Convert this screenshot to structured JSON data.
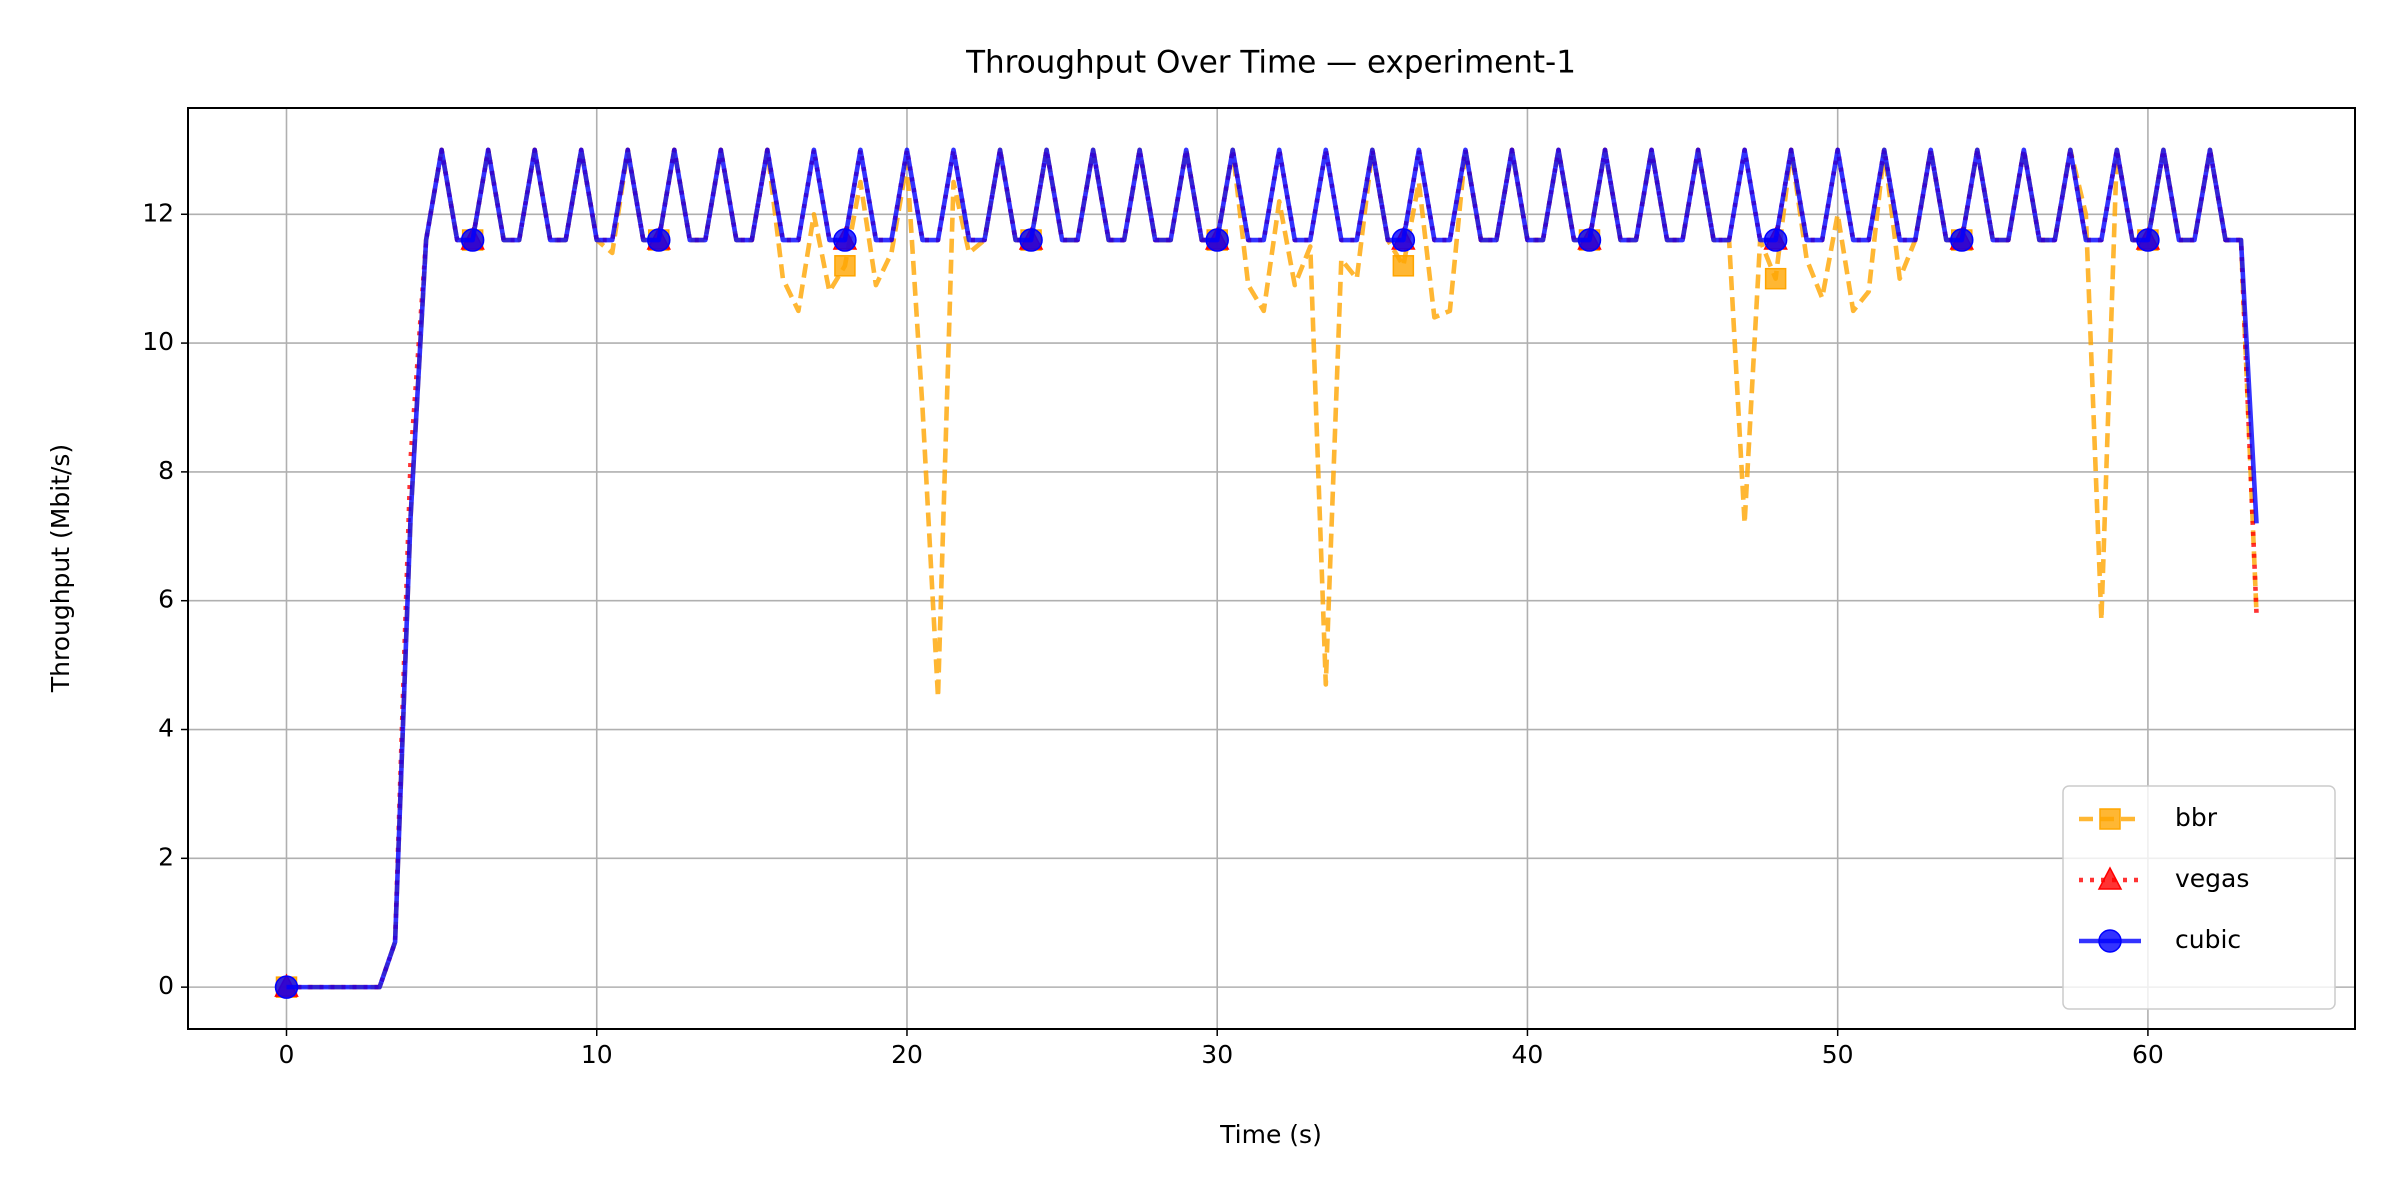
{
  "chart_data": {
    "type": "line",
    "title": "Throughput Over Time — experiment-1",
    "x_label": "Time (s)",
    "y_label": "Throughput (Mbit/s)",
    "xlim": [
      -3.175,
      66.675
    ],
    "ylim": [
      -0.65,
      13.65
    ],
    "xticks": [
      0,
      10,
      20,
      30,
      40,
      50,
      60
    ],
    "yticks": [
      0,
      2,
      4,
      6,
      8,
      10,
      12
    ],
    "grid": true,
    "legend_loc": "lower right",
    "x": [
      0,
      0.5,
      1,
      1.5,
      2,
      2.5,
      3,
      3.5,
      4,
      4.5,
      5,
      5.5,
      6,
      6.5,
      7,
      7.5,
      8,
      8.5,
      9,
      9.5,
      10,
      10.5,
      11,
      11.5,
      12,
      12.5,
      13,
      13.5,
      14,
      14.5,
      15,
      15.5,
      16,
      16.5,
      17,
      17.5,
      18,
      18.5,
      19,
      19.5,
      20,
      20.5,
      21,
      21.5,
      22,
      22.5,
      23,
      23.5,
      24,
      24.5,
      25,
      25.5,
      26,
      26.5,
      27,
      27.5,
      28,
      28.5,
      29,
      29.5,
      30,
      30.5,
      31,
      31.5,
      32,
      32.5,
      33,
      33.5,
      34,
      34.5,
      35,
      35.5,
      36,
      36.5,
      37,
      37.5,
      38,
      38.5,
      39,
      39.5,
      40,
      40.5,
      41,
      41.5,
      42,
      42.5,
      43,
      43.5,
      44,
      44.5,
      45,
      45.5,
      46,
      46.5,
      47,
      47.5,
      48,
      48.5,
      49,
      49.5,
      50,
      50.5,
      51,
      51.5,
      52,
      52.5,
      53,
      53.5,
      54,
      54.5,
      55,
      55.5,
      56,
      56.5,
      57,
      57.5,
      58,
      58.5,
      59,
      59.5,
      60,
      60.5,
      61,
      61.5,
      62,
      62.5,
      63,
      63.5
    ],
    "series": [
      {
        "name": "bbr",
        "color": "#ffa500",
        "linestyle": "dashed",
        "marker": "square",
        "values": [
          0,
          0,
          0,
          0,
          0,
          0,
          0,
          0.7,
          7.3,
          11.6,
          13,
          11.6,
          11.6,
          13,
          11.6,
          11.6,
          13,
          11.6,
          11.6,
          13,
          11.6,
          11.4,
          13,
          11.6,
          11.6,
          13,
          11.6,
          11.6,
          13,
          11.6,
          11.6,
          13,
          11.0,
          10.5,
          12,
          10.8,
          11.2,
          12.5,
          10.9,
          11.4,
          12.8,
          9,
          4.5,
          12.5,
          11.4,
          11.6,
          13,
          11.6,
          11.6,
          13,
          11.6,
          11.6,
          13,
          11.6,
          11.6,
          13,
          11.6,
          11.6,
          13,
          11.6,
          11.6,
          13,
          10.9,
          10.5,
          12.2,
          10.9,
          11.5,
          4.7,
          11.3,
          11,
          13,
          11.6,
          11.2,
          12.5,
          10.4,
          10.5,
          13,
          11.6,
          11.6,
          13,
          11.6,
          11.6,
          13,
          11.6,
          11.6,
          13,
          11.6,
          11.6,
          13,
          11.6,
          11.6,
          13,
          11.6,
          11.6,
          7.2,
          11.6,
          11,
          13,
          11.3,
          10.7,
          12,
          10.5,
          10.8,
          13,
          11,
          11.6,
          13,
          11.6,
          11.6,
          13,
          11.6,
          11.6,
          13,
          11.6,
          11.6,
          13,
          12,
          5.7,
          13,
          11.6,
          11.6,
          13,
          11.6,
          11.6,
          13,
          11.6,
          11.6,
          5.8
        ]
      },
      {
        "name": "vegas",
        "color": "#ff0000",
        "linestyle": "dotted",
        "marker": "triangle",
        "values": [
          0,
          0,
          0,
          0,
          0,
          0,
          0,
          0.7,
          8.2,
          11.6,
          13,
          11.6,
          11.6,
          13,
          11.6,
          11.6,
          13,
          11.6,
          11.6,
          13,
          11.6,
          11.6,
          13,
          11.6,
          11.6,
          13,
          11.6,
          11.6,
          13,
          11.6,
          11.6,
          13,
          11.6,
          11.6,
          13,
          11.6,
          11.6,
          13,
          11.6,
          11.6,
          13,
          11.6,
          11.6,
          13,
          11.6,
          11.6,
          13,
          11.6,
          11.6,
          13,
          11.6,
          11.6,
          13,
          11.6,
          11.6,
          13,
          11.6,
          11.6,
          13,
          11.6,
          11.6,
          13,
          11.6,
          11.6,
          13,
          11.6,
          11.6,
          13,
          11.6,
          11.6,
          13,
          11.6,
          11.6,
          13,
          11.6,
          11.6,
          13,
          11.6,
          11.6,
          13,
          11.6,
          11.6,
          13,
          11.6,
          11.6,
          13,
          11.6,
          11.6,
          13,
          11.6,
          11.6,
          13,
          11.6,
          11.6,
          13,
          11.6,
          11.6,
          13,
          11.6,
          11.6,
          13,
          11.6,
          11.6,
          13,
          11.6,
          11.6,
          13,
          11.6,
          11.6,
          13,
          11.6,
          11.6,
          13,
          11.6,
          11.6,
          13,
          11.6,
          11.6,
          13,
          11.6,
          11.6,
          13,
          11.6,
          11.6,
          13,
          11.6,
          11.6,
          5.8
        ]
      },
      {
        "name": "cubic",
        "color": "#0000ff",
        "linestyle": "solid",
        "marker": "circle",
        "values": [
          0,
          0,
          0,
          0,
          0,
          0,
          0,
          0.7,
          7.3,
          11.6,
          13,
          11.6,
          11.6,
          13,
          11.6,
          11.6,
          13,
          11.6,
          11.6,
          13,
          11.6,
          11.6,
          13,
          11.6,
          11.6,
          13,
          11.6,
          11.6,
          13,
          11.6,
          11.6,
          13,
          11.6,
          11.6,
          13,
          11.6,
          11.6,
          13,
          11.6,
          11.6,
          13,
          11.6,
          11.6,
          13,
          11.6,
          11.6,
          13,
          11.6,
          11.6,
          13,
          11.6,
          11.6,
          13,
          11.6,
          11.6,
          13,
          11.6,
          11.6,
          13,
          11.6,
          11.6,
          13,
          11.6,
          11.6,
          13,
          11.6,
          11.6,
          13,
          11.6,
          11.6,
          13,
          11.6,
          11.6,
          13,
          11.6,
          11.6,
          13,
          11.6,
          11.6,
          13,
          11.6,
          11.6,
          13,
          11.6,
          11.6,
          13,
          11.6,
          11.6,
          13,
          11.6,
          11.6,
          13,
          11.6,
          11.6,
          13,
          11.6,
          11.6,
          13,
          11.6,
          11.6,
          13,
          11.6,
          11.6,
          13,
          11.6,
          11.6,
          13,
          11.6,
          11.6,
          13,
          11.6,
          11.6,
          13,
          11.6,
          11.6,
          13,
          11.6,
          11.6,
          13,
          11.6,
          11.6,
          13,
          11.6,
          11.6,
          13,
          11.6,
          11.6,
          7.2
        ]
      }
    ]
  }
}
